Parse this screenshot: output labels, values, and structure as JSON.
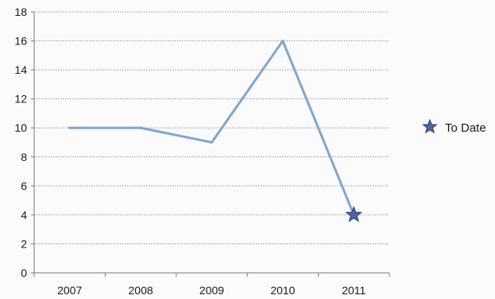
{
  "chart_data": {
    "type": "line",
    "title": "",
    "xlabel": "",
    "ylabel": "",
    "categories": [
      "2007",
      "2008",
      "2009",
      "2010",
      "2011"
    ],
    "series": [
      {
        "values": [
          10,
          10,
          9,
          16,
          4
        ],
        "color": "#7ea6cf"
      }
    ],
    "ylim": [
      0,
      18
    ],
    "yticks": [
      0,
      2,
      4,
      6,
      8,
      10,
      12,
      14,
      16,
      18
    ],
    "grid": true,
    "legend": {
      "position": "right",
      "entries": [
        {
          "label": "To Date",
          "marker": "star",
          "color": "#4c64a8"
        }
      ]
    },
    "markers": [
      {
        "category": "2011",
        "value": 4,
        "marker": "star",
        "color": "#4c64a8",
        "series_ref": "To Date"
      }
    ]
  }
}
